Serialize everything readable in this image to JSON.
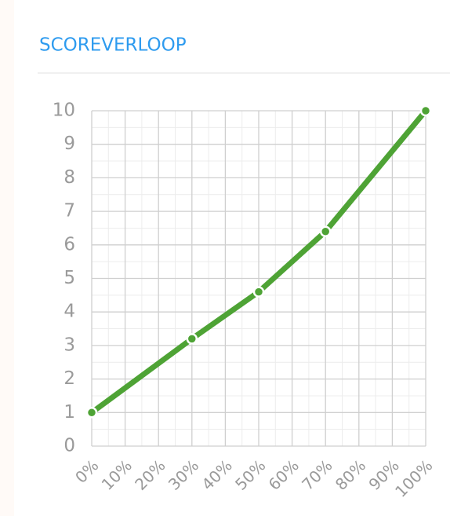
{
  "chart_data": {
    "type": "line",
    "title": "SCOREVERLOOP",
    "x": [
      0,
      30,
      50,
      70,
      100
    ],
    "series": [
      {
        "color": "#4ea335",
        "values": [
          1,
          3.2,
          4.6,
          6.4,
          10
        ]
      }
    ],
    "xlim": [
      0,
      100
    ],
    "xticks": [
      {
        "value": 0,
        "label": "0%"
      },
      {
        "value": 10,
        "label": "10%"
      },
      {
        "value": 20,
        "label": "20%"
      },
      {
        "value": 30,
        "label": "30%"
      },
      {
        "value": 40,
        "label": "40%"
      },
      {
        "value": 50,
        "label": "50%"
      },
      {
        "value": 60,
        "label": "60%"
      },
      {
        "value": 70,
        "label": "70%"
      },
      {
        "value": 80,
        "label": "80%"
      },
      {
        "value": 90,
        "label": "90%"
      },
      {
        "value": 100,
        "label": "100%"
      }
    ],
    "ylim": [
      0,
      10
    ],
    "yticks": [
      0,
      1,
      2,
      3,
      4,
      5,
      6,
      7,
      8,
      9,
      10
    ],
    "grid": true,
    "minor_grid": true
  }
}
